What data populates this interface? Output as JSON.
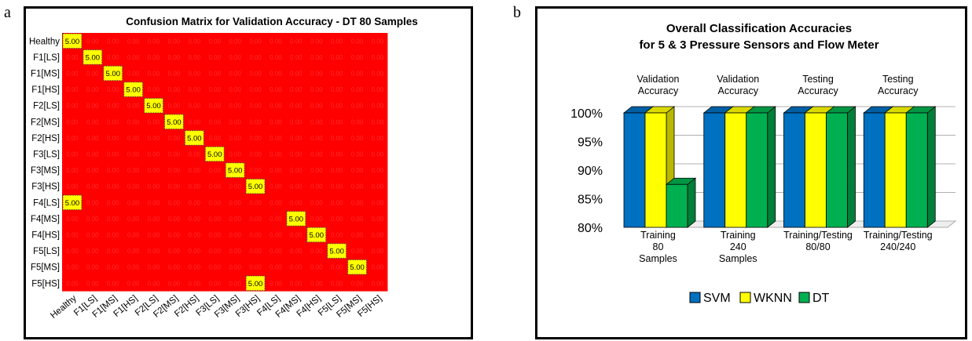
{
  "panel_a_letter": "a",
  "panel_b_letter": "b",
  "chart_data": [
    {
      "type": "heatmap",
      "title": "Confusion Matrix for Validation Accuracy - DT 80 Samples",
      "row_labels": [
        "Healthy",
        "F1[LS]",
        "F1[MS]",
        "F1[HS]",
        "F2[LS]",
        "F2[MS]",
        "F2[HS]",
        "F3[LS]",
        "F3[MS]",
        "F3[HS]",
        "F4[LS]",
        "F4[MS]",
        "F4[HS]",
        "F5[LS]",
        "F5[MS]",
        "F5[HS]"
      ],
      "col_labels": [
        "Healthy",
        "F1[LS]",
        "F1[MS]",
        "F1[HS]",
        "F2[LS]",
        "F2[MS]",
        "F2[HS]",
        "F3[LS]",
        "F3[MS]",
        "F3[HS]",
        "F4[LS]",
        "F4[MS]",
        "F4[HS]",
        "F5[LS]",
        "F5[MS]",
        "F5[HS]"
      ],
      "nonzero_cells": [
        {
          "row": 0,
          "col": 0,
          "value": "5.00"
        },
        {
          "row": 1,
          "col": 1,
          "value": "5.00"
        },
        {
          "row": 2,
          "col": 2,
          "value": "5.00"
        },
        {
          "row": 3,
          "col": 3,
          "value": "5.00"
        },
        {
          "row": 4,
          "col": 4,
          "value": "5.00"
        },
        {
          "row": 5,
          "col": 5,
          "value": "5.00"
        },
        {
          "row": 6,
          "col": 6,
          "value": "5.00"
        },
        {
          "row": 7,
          "col": 7,
          "value": "5.00"
        },
        {
          "row": 8,
          "col": 8,
          "value": "5.00"
        },
        {
          "row": 9,
          "col": 9,
          "value": "5.00"
        },
        {
          "row": 10,
          "col": 0,
          "value": "5.00"
        },
        {
          "row": 11,
          "col": 11,
          "value": "5.00"
        },
        {
          "row": 12,
          "col": 12,
          "value": "5.00"
        },
        {
          "row": 13,
          "col": 13,
          "value": "5.00"
        },
        {
          "row": 14,
          "col": 14,
          "value": "5.00"
        },
        {
          "row": 15,
          "col": 9,
          "value": "5.00"
        }
      ],
      "zero_value": "0.00",
      "colors": {
        "zero": "#ff0000",
        "nonzero": "#ffff00",
        "zero_text": "#ff2a2a",
        "nonzero_text": "#000000"
      }
    },
    {
      "type": "bar",
      "title": [
        "Overall Classification Accuracies",
        "for 5 & 3 Pressure Sensors and Flow Meter"
      ],
      "categories": [
        {
          "top": [
            "Validation",
            "Accuracy"
          ],
          "bottom": [
            "Training",
            "80",
            "Samples"
          ]
        },
        {
          "top": [
            "Validation",
            "Accuracy"
          ],
          "bottom": [
            "Training",
            "240",
            "Samples"
          ]
        },
        {
          "top": [
            "Testing",
            "Accuracy"
          ],
          "bottom": [
            "Training/Testing",
            "80/80"
          ]
        },
        {
          "top": [
            "Testing",
            "Accuracy"
          ],
          "bottom": [
            "Training/Testing",
            "240/240"
          ]
        }
      ],
      "series": [
        {
          "name": "SVM",
          "values": [
            100,
            100,
            100,
            100
          ],
          "color": "#0070c0"
        },
        {
          "name": "WKNN",
          "values": [
            100,
            100,
            100,
            100
          ],
          "color": "#ffff00"
        },
        {
          "name": "DT",
          "values": [
            87.5,
            100,
            100,
            100
          ],
          "color": "#00b050"
        }
      ],
      "y_ticks": [
        "80%",
        "85%",
        "90%",
        "95%",
        "100%"
      ],
      "ylim": [
        80,
        100
      ],
      "grid": true,
      "legend": "bottom"
    }
  ]
}
